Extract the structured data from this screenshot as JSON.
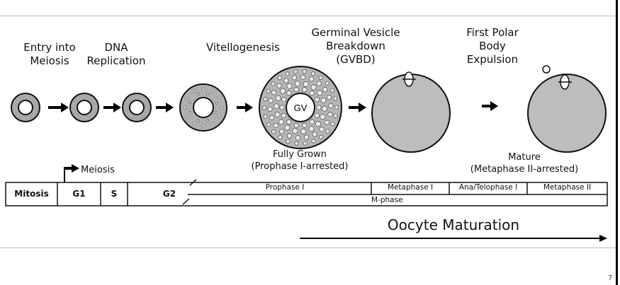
{
  "stages": {
    "entry": [
      "Entry into",
      "Meiosis"
    ],
    "dna": [
      "DNA",
      "Replication"
    ],
    "vitello": "Vitellogenesis",
    "gvbd": [
      "Germinal Vesicle",
      "Breakdown",
      "(GVBD)"
    ],
    "polar": [
      "First Polar",
      "Body",
      "Expulsion"
    ]
  },
  "gv_label": "GV",
  "fully_grown": [
    "Fully Grown",
    "(Prophase I-arrested)"
  ],
  "mature": [
    "Mature",
    "(Metaphase II-arrested)"
  ],
  "meiosis_label": "Meiosis",
  "phases": {
    "mitosis": "Mitosis",
    "g1": "G1",
    "s": "S",
    "g2": "G2",
    "prophase": "Prophase I",
    "metaphase1": "Metaphase I",
    "anatelo": "Ana/Telophase I",
    "metaphase2": "Metaphase II",
    "mphase": "M-phase"
  },
  "maturation": "Oocyte Maturation",
  "page_number": "7"
}
